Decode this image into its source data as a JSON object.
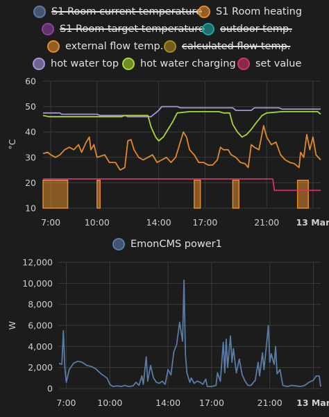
{
  "chart_data": [
    {
      "type": "line",
      "title": "",
      "ylabel": "°C",
      "ylim": [
        10,
        60
      ],
      "yticks": [
        "60",
        "50",
        "40",
        "30",
        "20",
        "10"
      ],
      "xticks": [
        "7:00",
        "10:00",
        "14:00",
        "17:00",
        "21:00",
        "13 Mar"
      ],
      "grid": true,
      "legend_position": "top",
      "legend": [
        {
          "name": "S1 Room current temperature",
          "color": "#5b7ba5",
          "hidden": true
        },
        {
          "name": "S1 Room heating",
          "color": "#e08a2c",
          "hidden": false
        },
        {
          "name": "S1 Room target temperature",
          "color": "#8e3fa0",
          "hidden": true
        },
        {
          "name": "outdoor temp.",
          "color": "#1fa3a0",
          "hidden": true
        },
        {
          "name": "external flow temp.",
          "color": "#e08a2c",
          "hidden": false
        },
        {
          "name": "calculated flow temp.",
          "color": "#a98a1e",
          "hidden": true
        },
        {
          "name": "hot water top",
          "color": "#a894d8",
          "hidden": false
        },
        {
          "name": "hot water charging",
          "color": "#a7d930",
          "hidden": false
        },
        {
          "name": "set value",
          "color": "#d0336a",
          "hidden": false
        }
      ],
      "time_range_hours": [
        6.5,
        24.5
      ],
      "series": [
        {
          "name": "hot water top",
          "color": "#a894d8",
          "points": [
            [
              6.5,
              47.5
            ],
            [
              7.6,
              47.5
            ],
            [
              7.7,
              47
            ],
            [
              10.0,
              47
            ],
            [
              10.2,
              46.5
            ],
            [
              11.8,
              46.5
            ],
            [
              12.0,
              46
            ],
            [
              13.5,
              46
            ],
            [
              13.7,
              47
            ],
            [
              14.0,
              48.5
            ],
            [
              14.2,
              50
            ],
            [
              15.2,
              50
            ],
            [
              15.4,
              49.5
            ],
            [
              18.8,
              49.5
            ],
            [
              19.0,
              48.5
            ],
            [
              20.0,
              48.5
            ],
            [
              20.2,
              49.5
            ],
            [
              21.8,
              49.5
            ],
            [
              22.0,
              49
            ],
            [
              24.5,
              49
            ]
          ]
        },
        {
          "name": "hot water charging",
          "color": "#a7d930",
          "points": [
            [
              6.5,
              46.5
            ],
            [
              6.9,
              46
            ],
            [
              11.6,
              46
            ],
            [
              11.8,
              46.5
            ],
            [
              13.3,
              46.5
            ],
            [
              13.5,
              42
            ],
            [
              13.8,
              38
            ],
            [
              14.0,
              36.5
            ],
            [
              14.3,
              38
            ],
            [
              14.6,
              41
            ],
            [
              14.9,
              44
            ],
            [
              15.2,
              47.5
            ],
            [
              16.0,
              48
            ],
            [
              17.9,
              48
            ],
            [
              18.2,
              47.5
            ],
            [
              18.6,
              47.5
            ],
            [
              18.8,
              43
            ],
            [
              19.1,
              40
            ],
            [
              19.4,
              38
            ],
            [
              19.7,
              39
            ],
            [
              20.0,
              41
            ],
            [
              20.3,
              43.5
            ],
            [
              20.7,
              46.5
            ],
            [
              21.0,
              47.5
            ],
            [
              22.0,
              48
            ],
            [
              24.3,
              48
            ],
            [
              24.5,
              47
            ]
          ]
        },
        {
          "name": "external flow temp.",
          "color": "#e08a2c",
          "points": [
            [
              6.5,
              31.5
            ],
            [
              6.8,
              32
            ],
            [
              7.0,
              31
            ],
            [
              7.3,
              30
            ],
            [
              7.6,
              31
            ],
            [
              7.9,
              33
            ],
            [
              8.2,
              34
            ],
            [
              8.5,
              33
            ],
            [
              8.8,
              35
            ],
            [
              9.0,
              32
            ],
            [
              9.3,
              36
            ],
            [
              9.5,
              38
            ],
            [
              9.6,
              33
            ],
            [
              9.8,
              35
            ],
            [
              10.0,
              30
            ],
            [
              10.5,
              31
            ],
            [
              10.8,
              28
            ],
            [
              11.2,
              28
            ],
            [
              11.5,
              25
            ],
            [
              11.8,
              26
            ],
            [
              12.0,
              36.5
            ],
            [
              12.2,
              37
            ],
            [
              12.4,
              33
            ],
            [
              12.7,
              30
            ],
            [
              13.0,
              29
            ],
            [
              13.3,
              30
            ],
            [
              13.6,
              31
            ],
            [
              13.9,
              28
            ],
            [
              14.2,
              29
            ],
            [
              14.5,
              30
            ],
            [
              14.8,
              28
            ],
            [
              15.1,
              30
            ],
            [
              15.4,
              36
            ],
            [
              15.6,
              40
            ],
            [
              15.8,
              38
            ],
            [
              16.0,
              33
            ],
            [
              16.3,
              31
            ],
            [
              16.6,
              28
            ],
            [
              16.9,
              28
            ],
            [
              17.2,
              27
            ],
            [
              17.5,
              27
            ],
            [
              17.8,
              29
            ],
            [
              18.0,
              34
            ],
            [
              18.2,
              33
            ],
            [
              18.5,
              33
            ],
            [
              18.7,
              31
            ],
            [
              19.0,
              30
            ],
            [
              19.3,
              28
            ],
            [
              19.6,
              27.5
            ],
            [
              19.8,
              26
            ],
            [
              20.0,
              35
            ],
            [
              20.2,
              34
            ],
            [
              20.5,
              33
            ],
            [
              20.8,
              42.5
            ],
            [
              21.0,
              38
            ],
            [
              21.3,
              35
            ],
            [
              21.6,
              36
            ],
            [
              21.9,
              31
            ],
            [
              22.2,
              29
            ],
            [
              22.5,
              28
            ],
            [
              22.8,
              27.5
            ],
            [
              23.1,
              26
            ],
            [
              23.2,
              32
            ],
            [
              23.4,
              30
            ],
            [
              23.6,
              39
            ],
            [
              23.8,
              33
            ],
            [
              24.0,
              38
            ],
            [
              24.2,
              31
            ],
            [
              24.5,
              29
            ]
          ]
        },
        {
          "name": "set value",
          "color": "#d0336a",
          "points": [
            [
              6.5,
              21.5
            ],
            [
              21.4,
              21.5
            ],
            [
              21.5,
              17
            ],
            [
              24.5,
              17
            ]
          ]
        }
      ],
      "heating_bars": [
        [
          6.5,
          8.1
        ],
        [
          10.0,
          10.2
        ],
        [
          16.3,
          16.7
        ],
        [
          18.8,
          19.2
        ],
        [
          23.0,
          23.7
        ]
      ],
      "heating_color": "#e08a2c",
      "heating_level": 21
    },
    {
      "type": "line",
      "title": "",
      "ylabel": "W",
      "ylim": [
        0,
        12000
      ],
      "yticks": [
        "12,000",
        "10,000",
        "8,000",
        "6,000",
        "4,000",
        "2,000",
        "0"
      ],
      "xticks": [
        "7:00",
        "10:00",
        "14:00",
        "17:00",
        "21:00",
        "13 Mar"
      ],
      "grid": true,
      "legend_position": "top",
      "legend": [
        {
          "name": "EmonCMS power1",
          "color": "#5b7ba5",
          "hidden": false
        }
      ],
      "time_range_hours": [
        6.5,
        24.5
      ],
      "series": [
        {
          "name": "EmonCMS power1",
          "color": "#5b7ba5",
          "points": [
            [
              6.5,
              2400
            ],
            [
              6.7,
              2300
            ],
            [
              6.8,
              5500
            ],
            [
              6.9,
              2000
            ],
            [
              7.0,
              600
            ],
            [
              7.2,
              1800
            ],
            [
              7.5,
              2400
            ],
            [
              7.8,
              2600
            ],
            [
              8.1,
              2500
            ],
            [
              8.4,
              2200
            ],
            [
              8.7,
              2100
            ],
            [
              9.0,
              1900
            ],
            [
              9.4,
              1400
            ],
            [
              9.8,
              1000
            ],
            [
              10.0,
              400
            ],
            [
              10.2,
              200
            ],
            [
              10.5,
              250
            ],
            [
              10.8,
              200
            ],
            [
              11.0,
              300
            ],
            [
              11.3,
              200
            ],
            [
              11.6,
              250
            ],
            [
              11.8,
              600
            ],
            [
              12.0,
              300
            ],
            [
              12.2,
              1200
            ],
            [
              12.3,
              400
            ],
            [
              12.5,
              3000
            ],
            [
              12.6,
              700
            ],
            [
              12.8,
              2200
            ],
            [
              13.0,
              1000
            ],
            [
              13.2,
              600
            ],
            [
              13.4,
              500
            ],
            [
              13.6,
              700
            ],
            [
              13.8,
              400
            ],
            [
              14.0,
              1800
            ],
            [
              14.2,
              1300
            ],
            [
              14.4,
              3500
            ],
            [
              14.6,
              4200
            ],
            [
              14.8,
              6300
            ],
            [
              15.0,
              4500
            ],
            [
              15.1,
              10300
            ],
            [
              15.2,
              3200
            ],
            [
              15.3,
              1500
            ],
            [
              15.5,
              600
            ],
            [
              15.6,
              1000
            ],
            [
              15.8,
              500
            ],
            [
              16.0,
              700
            ],
            [
              16.2,
              600
            ],
            [
              16.4,
              400
            ],
            [
              16.6,
              900
            ],
            [
              16.7,
              200
            ],
            [
              17.0,
              200
            ],
            [
              17.3,
              300
            ],
            [
              17.4,
              1500
            ],
            [
              17.6,
              700
            ],
            [
              17.8,
              4400
            ],
            [
              17.9,
              1500
            ],
            [
              18.0,
              4700
            ],
            [
              18.1,
              2000
            ],
            [
              18.3,
              5000
            ],
            [
              18.4,
              2500
            ],
            [
              18.5,
              3800
            ],
            [
              18.7,
              1500
            ],
            [
              18.9,
              2800
            ],
            [
              19.1,
              1300
            ],
            [
              19.3,
              700
            ],
            [
              19.5,
              300
            ],
            [
              19.7,
              300
            ],
            [
              20.0,
              800
            ],
            [
              20.2,
              2500
            ],
            [
              20.3,
              1200
            ],
            [
              20.5,
              3400
            ],
            [
              20.6,
              1800
            ],
            [
              20.8,
              4500
            ],
            [
              20.9,
              6000
            ],
            [
              21.0,
              2500
            ],
            [
              21.1,
              3300
            ],
            [
              21.3,
              2300
            ],
            [
              21.4,
              4000
            ],
            [
              21.5,
              1400
            ],
            [
              21.7,
              1800
            ],
            [
              21.9,
              300
            ],
            [
              22.2,
              200
            ],
            [
              22.5,
              300
            ],
            [
              22.8,
              250
            ],
            [
              23.1,
              200
            ],
            [
              23.4,
              300
            ],
            [
              23.7,
              600
            ],
            [
              24.0,
              800
            ],
            [
              24.2,
              1200
            ],
            [
              24.4,
              1200
            ],
            [
              24.5,
              200
            ]
          ]
        }
      ]
    }
  ]
}
